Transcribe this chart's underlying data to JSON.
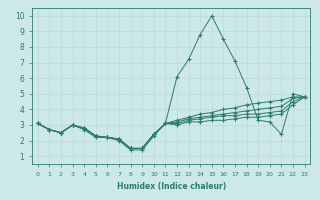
{
  "background_color": "#cce8e8",
  "grid_color": "#c0d8d8",
  "line_color": "#2d7a6e",
  "xlim": [
    -0.5,
    23.5
  ],
  "ylim": [
    0.5,
    10.5
  ],
  "xticks": [
    0,
    1,
    2,
    3,
    4,
    5,
    6,
    7,
    8,
    9,
    10,
    11,
    12,
    13,
    14,
    15,
    16,
    17,
    18,
    19,
    20,
    21,
    22,
    23
  ],
  "yticks": [
    1,
    2,
    3,
    4,
    5,
    6,
    7,
    8,
    9,
    10
  ],
  "xlabel": "Humidex (Indice chaleur)",
  "lines": [
    [
      3.1,
      2.7,
      2.5,
      3.0,
      2.7,
      2.2,
      2.2,
      2.0,
      1.4,
      1.4,
      2.3,
      3.1,
      6.1,
      7.2,
      8.8,
      10.0,
      8.5,
      7.1,
      5.4,
      3.3,
      3.2,
      2.4,
      5.0,
      4.8
    ],
    [
      3.1,
      2.7,
      2.5,
      3.0,
      2.8,
      2.3,
      2.2,
      2.1,
      1.5,
      1.5,
      2.4,
      3.1,
      3.3,
      3.5,
      3.7,
      3.8,
      4.0,
      4.1,
      4.3,
      4.4,
      4.5,
      4.6,
      4.8,
      4.8
    ],
    [
      3.1,
      2.7,
      2.5,
      3.0,
      2.8,
      2.3,
      2.2,
      2.1,
      1.5,
      1.5,
      2.4,
      3.1,
      3.2,
      3.4,
      3.5,
      3.6,
      3.7,
      3.8,
      3.9,
      4.0,
      4.1,
      4.2,
      4.7,
      4.8
    ],
    [
      3.1,
      2.7,
      2.5,
      3.0,
      2.8,
      2.3,
      2.2,
      2.1,
      1.5,
      1.5,
      2.4,
      3.1,
      3.1,
      3.3,
      3.4,
      3.5,
      3.6,
      3.6,
      3.7,
      3.7,
      3.8,
      3.9,
      4.5,
      4.8
    ],
    [
      3.1,
      2.7,
      2.5,
      3.0,
      2.8,
      2.3,
      2.2,
      2.1,
      1.5,
      1.5,
      2.4,
      3.1,
      3.0,
      3.2,
      3.2,
      3.3,
      3.3,
      3.4,
      3.5,
      3.5,
      3.6,
      3.7,
      4.3,
      4.8
    ]
  ]
}
